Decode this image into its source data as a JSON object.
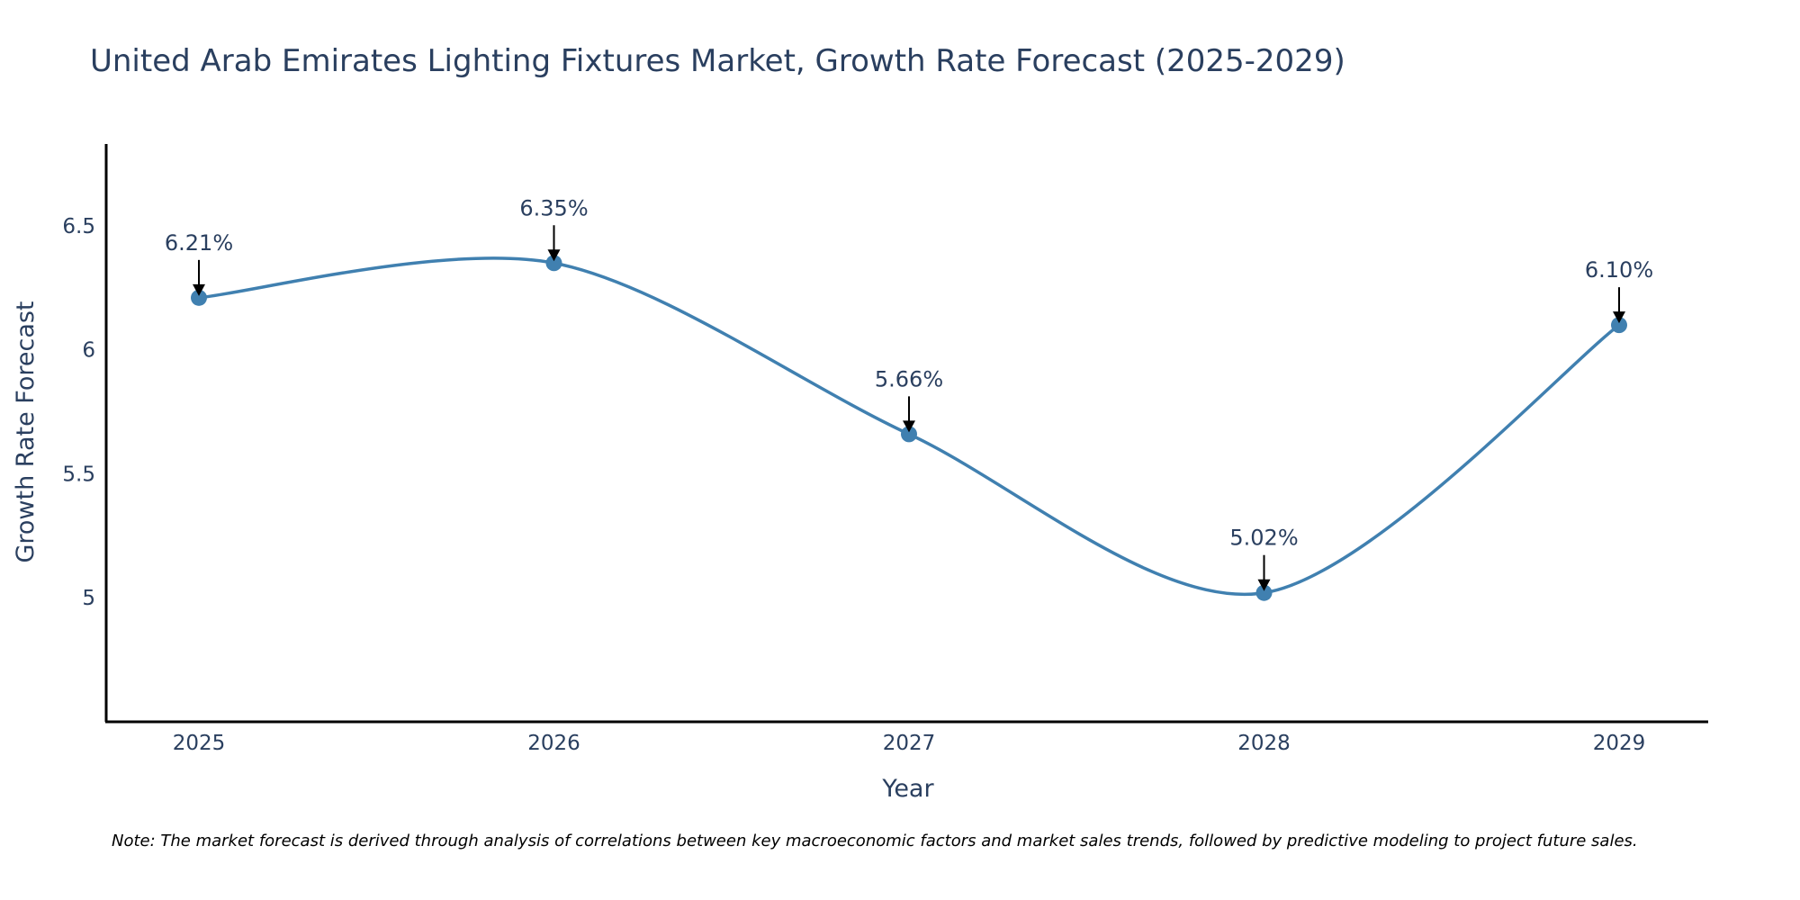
{
  "chart_data": {
    "type": "line",
    "title": "United Arab Emirates Lighting Fixtures Market, Growth Rate Forecast (2025-2029)",
    "xlabel": "Year",
    "ylabel": "Growth Rate Forecast",
    "categories": [
      "2025",
      "2026",
      "2027",
      "2028",
      "2029"
    ],
    "values": [
      6.21,
      6.35,
      5.66,
      5.02,
      6.1
    ],
    "data_labels": [
      "6.21%",
      "6.35%",
      "5.66%",
      "5.02%",
      "6.10%"
    ],
    "ylim": [
      4.5,
      6.83
    ],
    "yticks": [
      5,
      5.5,
      6,
      6.5
    ],
    "ytick_labels": [
      "5",
      "5.5",
      "6",
      "6.5"
    ],
    "grid": false,
    "line_shape": "spline",
    "colors": {
      "line": "#4080b0",
      "marker": "#4080b0",
      "text": "#2a3f5f",
      "axis": "#000000"
    },
    "note": "Note: The market forecast is derived through analysis of correlations between key macroeconomic factors and market sales trends, followed by predictive modeling to project future sales."
  }
}
